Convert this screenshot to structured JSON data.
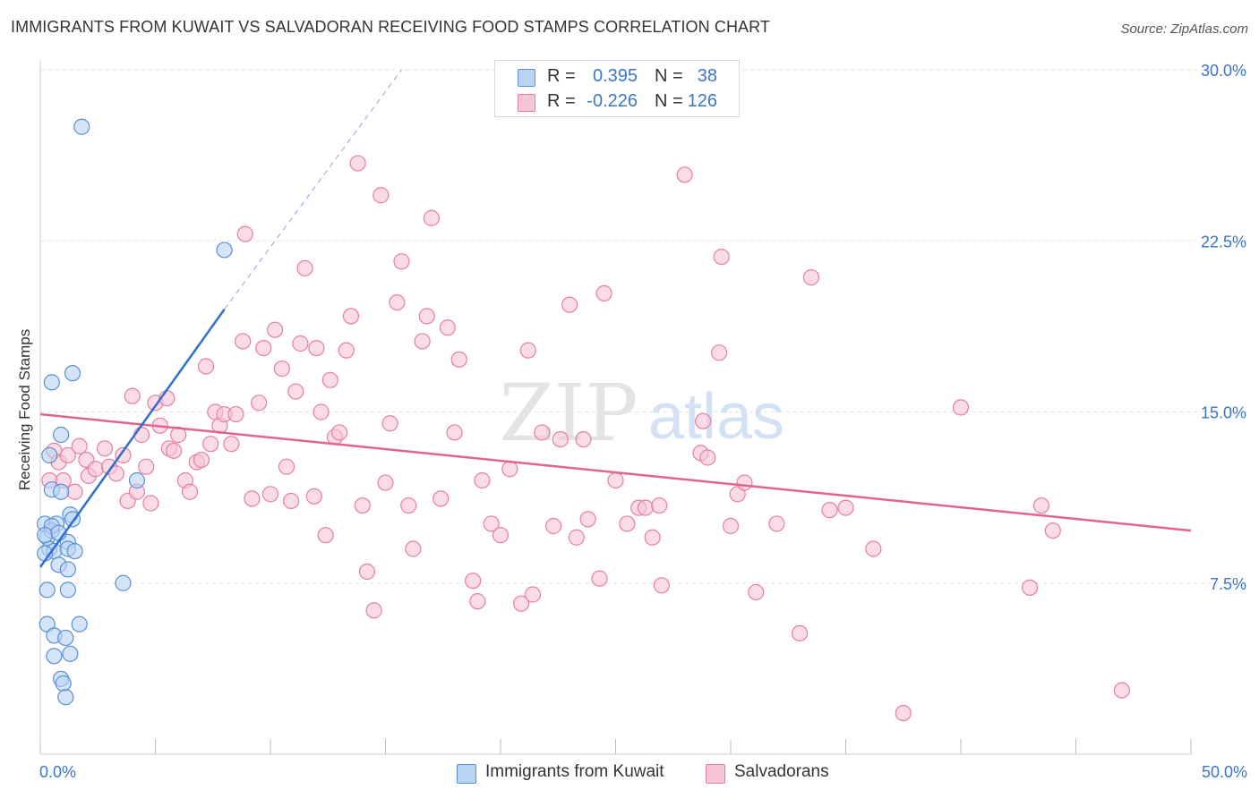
{
  "header": {
    "title": "IMMIGRANTS FROM KUWAIT VS SALVADORAN RECEIVING FOOD STAMPS CORRELATION CHART",
    "source": "Source: ZipAtlas.com"
  },
  "watermark": {
    "zip": "ZIP",
    "atlas": "atlas"
  },
  "stats": {
    "rows": [
      {
        "r_label": "R =",
        "r_value": "0.395",
        "n_label": "N =",
        "n_value": "38"
      },
      {
        "r_label": "R =",
        "r_value": "-0.226",
        "n_label": "N =",
        "n_value": "126"
      }
    ]
  },
  "legend": {
    "items": [
      {
        "label": "Immigrants from Kuwait"
      },
      {
        "label": "Salvadorans"
      }
    ]
  },
  "colors": {
    "kuwait_fill": "#b9d3f5",
    "kuwait_stroke": "#5b8fd6",
    "kuwait_line": "#2f6fcf",
    "salv_fill": "#f8c5d6",
    "salv_stroke": "#e4809f",
    "salv_line": "#e0648c",
    "tick_label": "#3a76c9",
    "grid": "#e3e3e3"
  },
  "chart_data": {
    "type": "scatter",
    "title": "IMMIGRANTS FROM KUWAIT VS SALVADORAN RECEIVING FOOD STAMPS CORRELATION CHART",
    "xlabel": "",
    "ylabel": "Receiving Food Stamps",
    "xlim": [
      0,
      50
    ],
    "ylim": [
      0,
      30
    ],
    "x_tick_labels": [
      "0.0%",
      "50.0%"
    ],
    "y_ticks": [
      7.5,
      15.0,
      22.5,
      30.0
    ],
    "y_tick_labels": [
      "7.5%",
      "15.0%",
      "22.5%",
      "30.0%"
    ],
    "grid": true,
    "legend_position": "bottom-center",
    "series": [
      {
        "name": "Immigrants from Kuwait",
        "R": 0.395,
        "N": 38,
        "trend": {
          "x": [
            0,
            8.0
          ],
          "y": [
            8.2,
            19.5
          ],
          "extended_to": [
            15.7,
            30.0
          ]
        },
        "points": [
          [
            1.8,
            27.5
          ],
          [
            8.0,
            22.1
          ],
          [
            0.5,
            16.3
          ],
          [
            1.4,
            16.7
          ],
          [
            0.9,
            14.0
          ],
          [
            0.4,
            13.1
          ],
          [
            0.5,
            11.6
          ],
          [
            0.9,
            11.5
          ],
          [
            4.2,
            12.0
          ],
          [
            1.3,
            10.5
          ],
          [
            0.2,
            10.1
          ],
          [
            0.7,
            10.1
          ],
          [
            1.4,
            10.3
          ],
          [
            0.3,
            9.5
          ],
          [
            0.5,
            9.8
          ],
          [
            1.2,
            9.3
          ],
          [
            0.4,
            9.0
          ],
          [
            0.6,
            8.9
          ],
          [
            1.2,
            9.0
          ],
          [
            1.5,
            8.9
          ],
          [
            0.2,
            8.8
          ],
          [
            0.8,
            8.3
          ],
          [
            1.2,
            8.1
          ],
          [
            3.6,
            7.5
          ],
          [
            0.3,
            7.2
          ],
          [
            1.2,
            7.2
          ],
          [
            0.3,
            5.7
          ],
          [
            1.7,
            5.7
          ],
          [
            0.6,
            5.2
          ],
          [
            1.1,
            5.1
          ],
          [
            0.6,
            4.3
          ],
          [
            1.3,
            4.4
          ],
          [
            0.9,
            3.3
          ],
          [
            1.0,
            3.1
          ],
          [
            1.1,
            2.5
          ],
          [
            0.5,
            10.0
          ],
          [
            0.2,
            9.6
          ],
          [
            0.8,
            9.7
          ]
        ]
      },
      {
        "name": "Salvadorans",
        "R": -0.226,
        "N": 126,
        "trend": {
          "x": [
            0,
            50
          ],
          "y": [
            14.9,
            9.8
          ]
        },
        "points": [
          [
            0.4,
            12.0
          ],
          [
            0.6,
            13.3
          ],
          [
            0.8,
            12.8
          ],
          [
            1.0,
            12.0
          ],
          [
            1.2,
            13.1
          ],
          [
            1.5,
            11.5
          ],
          [
            1.7,
            13.5
          ],
          [
            2.0,
            12.9
          ],
          [
            2.1,
            12.2
          ],
          [
            2.4,
            12.5
          ],
          [
            2.8,
            13.4
          ],
          [
            3.0,
            12.6
          ],
          [
            3.3,
            12.3
          ],
          [
            3.6,
            13.1
          ],
          [
            3.8,
            11.1
          ],
          [
            4.0,
            15.7
          ],
          [
            4.2,
            11.5
          ],
          [
            4.4,
            14.0
          ],
          [
            4.6,
            12.6
          ],
          [
            4.8,
            11.0
          ],
          [
            5.0,
            15.4
          ],
          [
            5.2,
            14.4
          ],
          [
            5.5,
            15.6
          ],
          [
            5.6,
            13.4
          ],
          [
            5.8,
            13.3
          ],
          [
            6.0,
            14.0
          ],
          [
            6.3,
            12.0
          ],
          [
            6.5,
            11.5
          ],
          [
            6.8,
            12.8
          ],
          [
            7.0,
            12.9
          ],
          [
            7.2,
            17.0
          ],
          [
            7.4,
            13.6
          ],
          [
            7.6,
            15.0
          ],
          [
            7.8,
            14.4
          ],
          [
            8.0,
            14.9
          ],
          [
            8.3,
            13.6
          ],
          [
            8.5,
            14.9
          ],
          [
            8.8,
            18.1
          ],
          [
            8.9,
            22.8
          ],
          [
            9.2,
            11.2
          ],
          [
            9.5,
            15.4
          ],
          [
            9.7,
            17.8
          ],
          [
            10.0,
            11.4
          ],
          [
            10.2,
            18.6
          ],
          [
            10.5,
            16.9
          ],
          [
            10.7,
            12.6
          ],
          [
            10.9,
            11.1
          ],
          [
            11.1,
            15.9
          ],
          [
            11.3,
            18.0
          ],
          [
            11.5,
            21.3
          ],
          [
            11.9,
            11.3
          ],
          [
            12.0,
            17.8
          ],
          [
            12.2,
            15.0
          ],
          [
            12.4,
            9.6
          ],
          [
            12.6,
            16.4
          ],
          [
            12.8,
            13.9
          ],
          [
            13.0,
            14.1
          ],
          [
            13.3,
            17.7
          ],
          [
            13.5,
            19.2
          ],
          [
            13.8,
            25.9
          ],
          [
            14.0,
            10.9
          ],
          [
            14.2,
            8.0
          ],
          [
            14.5,
            6.3
          ],
          [
            14.8,
            24.5
          ],
          [
            15.0,
            11.9
          ],
          [
            15.2,
            14.5
          ],
          [
            15.5,
            19.8
          ],
          [
            15.7,
            21.6
          ],
          [
            16.0,
            10.9
          ],
          [
            16.2,
            9.0
          ],
          [
            16.6,
            18.1
          ],
          [
            16.8,
            19.2
          ],
          [
            17.0,
            23.5
          ],
          [
            17.4,
            11.2
          ],
          [
            17.7,
            18.7
          ],
          [
            18.0,
            14.1
          ],
          [
            18.2,
            17.3
          ],
          [
            18.8,
            7.6
          ],
          [
            19.0,
            6.7
          ],
          [
            19.2,
            12.0
          ],
          [
            19.6,
            10.1
          ],
          [
            20.0,
            9.6
          ],
          [
            20.4,
            12.5
          ],
          [
            20.9,
            6.6
          ],
          [
            21.2,
            17.7
          ],
          [
            21.4,
            7.0
          ],
          [
            21.8,
            14.1
          ],
          [
            22.3,
            10.0
          ],
          [
            22.6,
            13.8
          ],
          [
            23.0,
            19.7
          ],
          [
            23.3,
            9.5
          ],
          [
            23.6,
            13.8
          ],
          [
            23.8,
            10.3
          ],
          [
            24.3,
            7.7
          ],
          [
            24.5,
            20.2
          ],
          [
            25.0,
            12.0
          ],
          [
            25.5,
            10.1
          ],
          [
            26.0,
            10.8
          ],
          [
            26.3,
            10.8
          ],
          [
            26.6,
            9.5
          ],
          [
            26.9,
            10.9
          ],
          [
            27.0,
            7.4
          ],
          [
            28.0,
            25.4
          ],
          [
            28.7,
            13.2
          ],
          [
            28.8,
            14.6
          ],
          [
            29.0,
            13.0
          ],
          [
            29.5,
            17.6
          ],
          [
            29.6,
            21.8
          ],
          [
            30.0,
            10.0
          ],
          [
            30.3,
            11.4
          ],
          [
            30.6,
            11.9
          ],
          [
            31.1,
            7.1
          ],
          [
            32.0,
            10.1
          ],
          [
            33.0,
            5.3
          ],
          [
            33.5,
            20.9
          ],
          [
            35.0,
            10.8
          ],
          [
            36.2,
            9.0
          ],
          [
            37.5,
            1.8
          ],
          [
            40.0,
            15.2
          ],
          [
            43.5,
            10.9
          ],
          [
            44.0,
            9.8
          ],
          [
            47.0,
            2.8
          ],
          [
            43.0,
            7.3
          ],
          [
            34.3,
            10.7
          ]
        ]
      }
    ]
  }
}
